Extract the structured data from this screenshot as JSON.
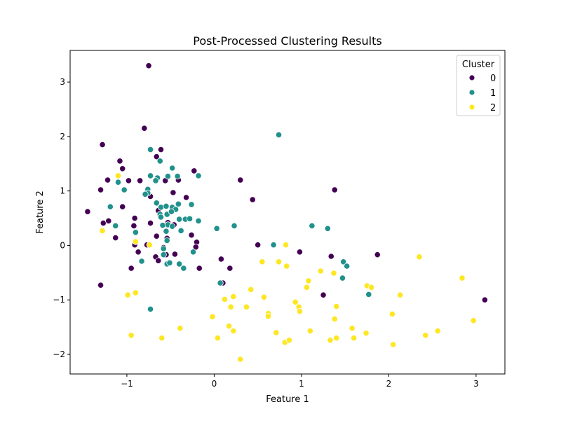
{
  "chart_data": {
    "type": "scatter",
    "title": "Post-Processed Clustering Results",
    "xlabel": "Feature 1",
    "ylabel": "Feature 2",
    "xlim": [
      -1.65,
      3.33
    ],
    "ylim": [
      -2.36,
      3.58
    ],
    "xticks": [
      -1,
      0,
      1,
      2,
      3
    ],
    "yticks": [
      -2,
      -1,
      0,
      1,
      2,
      3
    ],
    "xtick_labels": [
      "−1",
      "0",
      "1",
      "2",
      "3"
    ],
    "ytick_labels": [
      "−2",
      "−1",
      "0",
      "1",
      "2",
      "3"
    ],
    "grid": false,
    "legend": {
      "title": "Cluster",
      "placement": "top-right",
      "entries": [
        "0",
        "1",
        "2"
      ]
    },
    "series": [
      {
        "name": "0",
        "color": "#440154",
        "points": [
          [
            -0.75,
            3.3
          ],
          [
            -0.8,
            2.15
          ],
          [
            -1.28,
            1.85
          ],
          [
            -1.08,
            1.55
          ],
          [
            -0.66,
            1.63
          ],
          [
            -0.61,
            1.76
          ],
          [
            -1.05,
            1.41
          ],
          [
            -1.22,
            1.2
          ],
          [
            -0.98,
            1.19
          ],
          [
            -0.85,
            1.19
          ],
          [
            -0.56,
            1.19
          ],
          [
            -0.41,
            1.2
          ],
          [
            -0.23,
            1.37
          ],
          [
            0.3,
            1.2
          ],
          [
            -1.3,
            1.02
          ],
          [
            -1.05,
            0.71
          ],
          [
            -0.73,
            0.9
          ],
          [
            -0.47,
            0.97
          ],
          [
            -0.32,
            0.88
          ],
          [
            -0.64,
            0.64
          ],
          [
            -1.45,
            0.62
          ],
          [
            -1.27,
            0.41
          ],
          [
            -1.21,
            0.45
          ],
          [
            -0.91,
            0.5
          ],
          [
            -0.73,
            0.41
          ],
          [
            -0.62,
            0.57
          ],
          [
            -0.53,
            0.42
          ],
          [
            -0.46,
            0.38
          ],
          [
            -0.92,
            0.36
          ],
          [
            -0.55,
            0.27
          ],
          [
            -1.13,
            0.14
          ],
          [
            -0.66,
            0.17
          ],
          [
            -0.26,
            0.19
          ],
          [
            -0.2,
            0.06
          ],
          [
            -0.91,
            0.01
          ],
          [
            -0.77,
            0.01
          ],
          [
            -0.58,
            -0.04
          ],
          [
            -0.54,
            0.13
          ],
          [
            -0.21,
            -0.03
          ],
          [
            -0.87,
            -0.12
          ],
          [
            -0.67,
            -0.21
          ],
          [
            -0.55,
            -0.17
          ],
          [
            -0.45,
            -0.16
          ],
          [
            -0.95,
            -0.42
          ],
          [
            -0.64,
            -0.28
          ],
          [
            -0.17,
            -0.42
          ],
          [
            0.08,
            -0.25
          ],
          [
            0.18,
            -0.42
          ],
          [
            0.1,
            -0.69
          ],
          [
            0.44,
            0.84
          ],
          [
            0.5,
            0.01
          ],
          [
            0.98,
            -0.12
          ],
          [
            1.34,
            -0.2
          ],
          [
            1.38,
            1.02
          ],
          [
            1.87,
            -0.17
          ],
          [
            1.25,
            -0.91
          ],
          [
            -1.3,
            -0.73
          ],
          [
            3.1,
            -1.0
          ]
        ]
      },
      {
        "name": "1",
        "color": "#21918c",
        "points": [
          [
            0.74,
            2.03
          ],
          [
            -0.73,
            1.76
          ],
          [
            -0.62,
            1.55
          ],
          [
            -0.48,
            1.42
          ],
          [
            -0.18,
            1.28
          ],
          [
            -0.73,
            1.28
          ],
          [
            -0.65,
            1.24
          ],
          [
            -0.53,
            1.27
          ],
          [
            -0.42,
            1.27
          ],
          [
            -0.67,
            1.19
          ],
          [
            -1.1,
            1.16
          ],
          [
            -1.03,
            1.02
          ],
          [
            -0.76,
            1.03
          ],
          [
            -0.76,
            0.96
          ],
          [
            -0.79,
            0.94
          ],
          [
            -0.66,
            0.78
          ],
          [
            -0.61,
            0.7
          ],
          [
            -0.55,
            0.72
          ],
          [
            -0.48,
            0.7
          ],
          [
            -0.44,
            0.66
          ],
          [
            -0.41,
            0.76
          ],
          [
            -0.26,
            0.75
          ],
          [
            -1.19,
            0.71
          ],
          [
            -0.54,
            0.57
          ],
          [
            -0.49,
            0.62
          ],
          [
            -0.62,
            0.57
          ],
          [
            -0.61,
            0.52
          ],
          [
            -0.4,
            0.48
          ],
          [
            -0.33,
            0.48
          ],
          [
            -0.28,
            0.49
          ],
          [
            -0.18,
            0.45
          ],
          [
            -1.13,
            0.36
          ],
          [
            -0.9,
            0.24
          ],
          [
            -0.59,
            0.37
          ],
          [
            -0.53,
            0.38
          ],
          [
            -0.48,
            0.35
          ],
          [
            -0.55,
            0.26
          ],
          [
            -0.38,
            0.27
          ],
          [
            -0.54,
            0.09
          ],
          [
            0.03,
            0.31
          ],
          [
            0.23,
            0.36
          ],
          [
            1.12,
            0.36
          ],
          [
            1.3,
            0.31
          ],
          [
            0.68,
            0.01
          ],
          [
            -0.58,
            -0.06
          ],
          [
            -0.24,
            -0.12
          ],
          [
            -0.58,
            -0.17
          ],
          [
            -0.83,
            -0.29
          ],
          [
            -0.54,
            -0.34
          ],
          [
            -0.51,
            -0.32
          ],
          [
            -0.4,
            -0.34
          ],
          [
            -0.35,
            -0.42
          ],
          [
            1.48,
            -0.3
          ],
          [
            1.52,
            -0.38
          ],
          [
            1.47,
            -0.6
          ],
          [
            1.77,
            -0.9
          ],
          [
            0.07,
            -0.69
          ],
          [
            -0.73,
            -1.17
          ]
        ]
      },
      {
        "name": "2",
        "color": "#fde725",
        "points": [
          [
            -1.1,
            1.28
          ],
          [
            -1.28,
            0.27
          ],
          [
            -0.9,
            0.07
          ],
          [
            -0.74,
            0.01
          ],
          [
            0.82,
            0.01
          ],
          [
            0.55,
            -0.3
          ],
          [
            0.74,
            -0.3
          ],
          [
            0.83,
            -0.38
          ],
          [
            1.22,
            -0.47
          ],
          [
            1.37,
            -0.51
          ],
          [
            1.08,
            -0.65
          ],
          [
            1.06,
            -0.77
          ],
          [
            1.75,
            -0.74
          ],
          [
            1.8,
            -0.77
          ],
          [
            2.35,
            -0.21
          ],
          [
            2.84,
            -0.6
          ],
          [
            -0.99,
            -0.91
          ],
          [
            -0.9,
            -0.87
          ],
          [
            0.42,
            -0.81
          ],
          [
            0.12,
            -0.99
          ],
          [
            0.22,
            -0.94
          ],
          [
            0.57,
            -0.95
          ],
          [
            0.37,
            -1.13
          ],
          [
            0.19,
            -1.13
          ],
          [
            0.62,
            -1.25
          ],
          [
            0.62,
            -1.3
          ],
          [
            0.93,
            -1.04
          ],
          [
            0.97,
            -1.13
          ],
          [
            0.98,
            -1.21
          ],
          [
            1.4,
            -1.12
          ],
          [
            1.38,
            -1.35
          ],
          [
            2.13,
            -0.91
          ],
          [
            2.04,
            -1.26
          ],
          [
            -0.39,
            -1.52
          ],
          [
            -0.02,
            -1.31
          ],
          [
            0.17,
            -1.48
          ],
          [
            0.22,
            -1.57
          ],
          [
            0.71,
            -1.6
          ],
          [
            1.1,
            -1.57
          ],
          [
            1.58,
            -1.52
          ],
          [
            1.74,
            -1.61
          ],
          [
            2.56,
            -1.57
          ],
          [
            2.97,
            -1.38
          ],
          [
            -0.95,
            -1.65
          ],
          [
            -0.6,
            -1.7
          ],
          [
            0.04,
            -1.7
          ],
          [
            0.81,
            -1.78
          ],
          [
            0.86,
            -1.74
          ],
          [
            1.33,
            -1.74
          ],
          [
            1.4,
            -1.7
          ],
          [
            1.6,
            -1.7
          ],
          [
            2.05,
            -1.82
          ],
          [
            2.42,
            -1.65
          ],
          [
            0.3,
            -2.09
          ]
        ]
      }
    ]
  }
}
